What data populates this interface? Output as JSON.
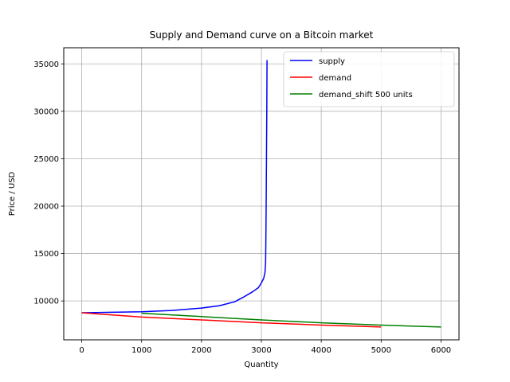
{
  "chart_data": {
    "type": "line",
    "title": "Supply and Demand curve on a Bitcoin market",
    "xlabel": "Quantity",
    "ylabel": "Price / USD",
    "xlim": [
      -300,
      6300
    ],
    "ylim": [
      5900,
      36700
    ],
    "xticks": [
      0,
      1000,
      2000,
      3000,
      4000,
      5000,
      6000
    ],
    "yticks": [
      10000,
      15000,
      20000,
      25000,
      30000,
      35000
    ],
    "grid": true,
    "legend_position": "top-right",
    "series": [
      {
        "name": "supply",
        "color": "#0000ff",
        "x": [
          0,
          500,
          1000,
          1500,
          2000,
          2300,
          2550,
          2700,
          2850,
          2950,
          3000,
          3040,
          3060,
          3070,
          3075,
          3080,
          3085,
          3090,
          3095
        ],
        "y": [
          8750,
          8800,
          8850,
          9000,
          9250,
          9500,
          9900,
          10400,
          10950,
          11400,
          11900,
          12400,
          13000,
          14000,
          16000,
          20000,
          25000,
          30000,
          35400
        ]
      },
      {
        "name": "demand",
        "color": "#ff0000",
        "x": [
          0,
          1000,
          2000,
          3000,
          4000,
          5000
        ],
        "y": [
          8750,
          8300,
          8000,
          7700,
          7450,
          7250
        ]
      },
      {
        "name": "demand_shift 500 units",
        "color": "#008000",
        "x": [
          1000,
          2000,
          3000,
          4000,
          5000,
          6000
        ],
        "y": [
          8700,
          8350,
          8000,
          7700,
          7450,
          7250
        ]
      }
    ]
  }
}
